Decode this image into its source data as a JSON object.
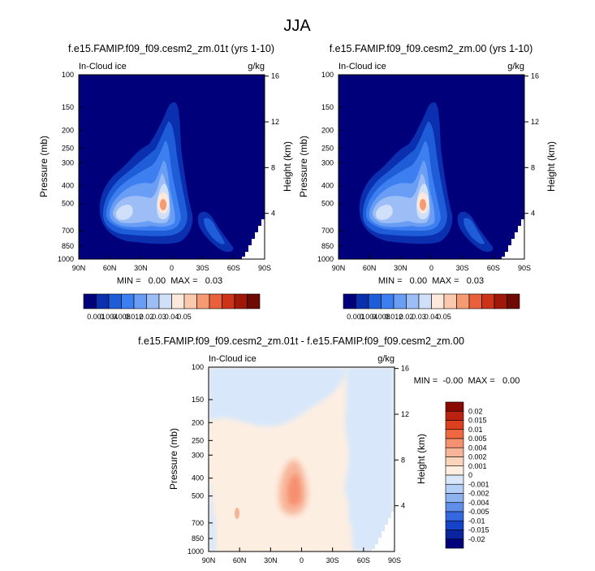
{
  "page": {
    "title": "JJA"
  },
  "panels": [
    {
      "title": "f.e15.FAMIP.f09_f09.cesm2_zm.01t (yrs 1-10)",
      "left_label": "In-Cloud ice",
      "right_label": "g/kg",
      "ylabel": "Pressure (mb)",
      "ylabel_right": "Height (km)",
      "stats": "MIN =   0.00  MAX =   0.03"
    },
    {
      "title": "f.e15.FAMIP.f09_f09.cesm2_zm.00 (yrs 1-10)",
      "left_label": "In-Cloud ice",
      "right_label": "g/kg",
      "ylabel": "Pressure (mb)",
      "ylabel_right": "Height (km)",
      "stats": "MIN =   0.00  MAX =   0.03"
    },
    {
      "title": "f.e15.FAMIP.f09_f09.cesm2_zm.01t - f.e15.FAMIP.f09_f09.cesm2_zm.00",
      "left_label": "In-Cloud ice",
      "right_label": "g/kg",
      "ylabel": "Pressure (mb)",
      "ylabel_right": "Height (km)",
      "stats": "MIN =  -0.00  MAX =   0.00"
    }
  ],
  "chart_data": [
    {
      "type": "heatmap",
      "title": "f.e15.FAMIP.f09_f09.cesm2_zm.01t (yrs 1-10)",
      "xlabel": "",
      "ylabel": "Pressure (mb)",
      "ylabel_right": "Height (km)",
      "x_ticks": [
        "90N",
        "60N",
        "30N",
        "0",
        "30S",
        "60S",
        "90S"
      ],
      "y_ticks": [
        100,
        150,
        200,
        250,
        300,
        400,
        500,
        700,
        850,
        1000
      ],
      "y_right_ticks": [
        16,
        12,
        8,
        4
      ],
      "y_scale": "log",
      "xlim": [
        90,
        -90
      ],
      "ylim": [
        1000,
        100
      ],
      "levels": [
        0.001,
        0.004,
        0.008,
        0.012,
        0.02,
        0.03,
        0.04,
        0.05
      ],
      "colors": [
        "#00007a",
        "#0a30b0",
        "#1e5cd8",
        "#3d7ef0",
        "#6a9ef5",
        "#9cbdf5",
        "#d0e0f8",
        "#fde8dc",
        "#fbc9ae",
        "#f59a73",
        "#e8603c",
        "#cc3318",
        "#a01808",
        "#6e0a02"
      ],
      "colorbar_labels": [
        "0.001",
        "0.004",
        "0.008",
        "0.012",
        "0.02",
        "0.03",
        "0.04",
        "0.05"
      ],
      "features": [
        {
          "lat": 10,
          "p": 500,
          "value": 0.03,
          "label": "maximum"
        },
        {
          "lat": 52,
          "p": 630,
          "value": 0.014,
          "label": "secondary maximum"
        },
        {
          "lat": -60,
          "p": 700,
          "value": 0.004,
          "label": "southern high-latitude branch"
        }
      ],
      "min": 0.0,
      "max": 0.03
    },
    {
      "type": "heatmap",
      "title": "f.e15.FAMIP.f09_f09.cesm2_zm.00 (yrs 1-10)",
      "xlabel": "",
      "ylabel": "Pressure (mb)",
      "ylabel_right": "Height (km)",
      "x_ticks": [
        "90N",
        "60N",
        "30N",
        "0",
        "30S",
        "60S",
        "90S"
      ],
      "y_ticks": [
        100,
        150,
        200,
        250,
        300,
        400,
        500,
        700,
        850,
        1000
      ],
      "y_right_ticks": [
        16,
        12,
        8,
        4
      ],
      "y_scale": "log",
      "xlim": [
        90,
        -90
      ],
      "ylim": [
        1000,
        100
      ],
      "levels": [
        0.001,
        0.004,
        0.008,
        0.012,
        0.02,
        0.03,
        0.04,
        0.05
      ],
      "colors": [
        "#00007a",
        "#0a30b0",
        "#1e5cd8",
        "#3d7ef0",
        "#6a9ef5",
        "#9cbdf5",
        "#d0e0f8",
        "#fde8dc",
        "#fbc9ae",
        "#f59a73",
        "#e8603c",
        "#cc3318",
        "#a01808",
        "#6e0a02"
      ],
      "colorbar_labels": [
        "0.001",
        "0.004",
        "0.008",
        "0.012",
        "0.02",
        "0.03",
        "0.04",
        "0.05"
      ],
      "features": [
        {
          "lat": 10,
          "p": 500,
          "value": 0.03,
          "label": "maximum"
        },
        {
          "lat": 52,
          "p": 630,
          "value": 0.014,
          "label": "secondary maximum"
        },
        {
          "lat": -60,
          "p": 700,
          "value": 0.004,
          "label": "southern high-latitude branch"
        }
      ],
      "min": 0.0,
      "max": 0.03
    },
    {
      "type": "heatmap",
      "title": "f.e15.FAMIP.f09_f09.cesm2_zm.01t - f.e15.FAMIP.f09_f09.cesm2_zm.00",
      "xlabel": "",
      "ylabel": "Pressure (mb)",
      "ylabel_right": "Height (km)",
      "x_ticks": [
        "90N",
        "60N",
        "30N",
        "0",
        "30S",
        "60S",
        "90S"
      ],
      "y_ticks": [
        100,
        150,
        200,
        250,
        300,
        400,
        500,
        700,
        850,
        1000
      ],
      "y_right_ticks": [
        16,
        12,
        8,
        4
      ],
      "y_scale": "log",
      "xlim": [
        90,
        -90
      ],
      "ylim": [
        1000,
        100
      ],
      "levels": [
        0.02,
        0.015,
        0.01,
        0.005,
        0.004,
        0.002,
        0.001,
        0,
        -0.001,
        -0.002,
        -0.004,
        -0.005,
        -0.01,
        -0.015,
        -0.02
      ],
      "colors": [
        "#8a0a00",
        "#bb2210",
        "#dd4020",
        "#f06840",
        "#f59070",
        "#f8b498",
        "#fbd4bc",
        "#fdeee2",
        "#d8e8fa",
        "#b4cef5",
        "#8cb2f0",
        "#5e8eea",
        "#3468e0",
        "#1442c8",
        "#0a24a0",
        "#00007a"
      ],
      "colorbar_labels": [
        "0.02",
        "0.015",
        "0.01",
        "0.005",
        "0.004",
        "0.002",
        "0.001",
        "0",
        "-0.001",
        "-0.002",
        "-0.004",
        "-0.005",
        "-0.01",
        "-0.015",
        "-0.02"
      ],
      "features": [
        {
          "lat": 10,
          "p": 480,
          "value": 0.002,
          "label": "positive anomaly core"
        },
        {
          "lat": 57,
          "p": 620,
          "value": 0.001,
          "label": "small positive cell"
        }
      ],
      "min": -0.0,
      "max": 0.0
    }
  ]
}
